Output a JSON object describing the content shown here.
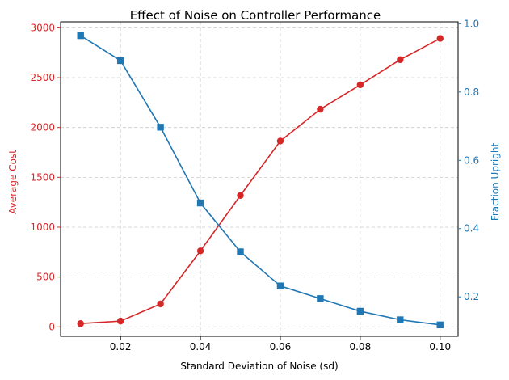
{
  "chart_data": {
    "type": "line",
    "title": "Effect of Noise on Controller Performance",
    "xlabel": "Standard Deviation of Noise (sd)",
    "ylabel_left": "Average Cost",
    "ylabel_right": "Fraction Upright",
    "x": [
      0.01,
      0.02,
      0.03,
      0.04,
      0.05,
      0.06,
      0.07,
      0.08,
      0.09,
      0.1
    ],
    "x_ticks": [
      "0.02",
      "0.04",
      "0.06",
      "0.08",
      "0.10"
    ],
    "x_tick_values": [
      0.02,
      0.04,
      0.06,
      0.08,
      0.1
    ],
    "y_left_ticks": [
      "0",
      "500",
      "1000",
      "1500",
      "2000",
      "2500",
      "3000"
    ],
    "y_left_tick_values": [
      0,
      500,
      1000,
      1500,
      2000,
      2500,
      3000
    ],
    "y_right_ticks": [
      "0.2",
      "0.4",
      "0.6",
      "0.8",
      "1.0"
    ],
    "y_right_tick_values": [
      0.2,
      0.4,
      0.6,
      0.8,
      1.0
    ],
    "xlim": [
      0.005,
      0.1045
    ],
    "ylim_left": [
      -95,
      3060
    ],
    "ylim_right": [
      0.0845,
      1.0055
    ],
    "grid": true,
    "series": [
      {
        "axis": "left",
        "marker": "circle",
        "color": "#d62728",
        "values": [
          33,
          58,
          230,
          762,
          1318,
          1864,
          2183,
          2428,
          2680,
          2893
        ]
      },
      {
        "axis": "right",
        "marker": "square",
        "color": "#1f77b4",
        "values": [
          0.965,
          0.892,
          0.697,
          0.475,
          0.332,
          0.232,
          0.195,
          0.158,
          0.133,
          0.118
        ]
      }
    ]
  }
}
